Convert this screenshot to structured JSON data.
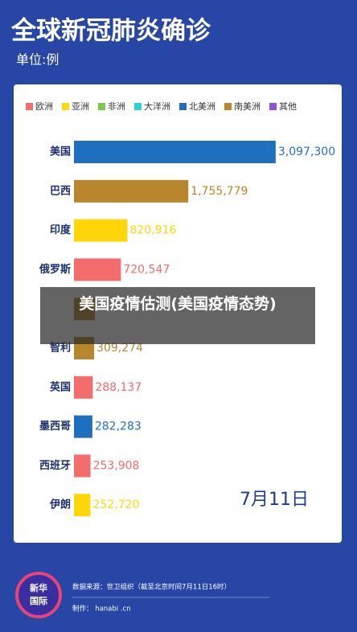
{
  "chart_data": {
    "type": "bar",
    "orientation": "horizontal",
    "title": "全球新冠肺炎确诊",
    "subtitle": "单位:例",
    "categories": [
      "美国",
      "巴西",
      "印度",
      "俄罗斯",
      null,
      "智利",
      "英国",
      "墨西哥",
      "西班牙",
      "伊朗"
    ],
    "series": [
      {
        "name": "欧洲",
        "color": "#f36d6d",
        "values": [
          null,
          null,
          null,
          720547,
          null,
          null,
          288137,
          null,
          253908,
          null
        ],
        "value_labels": [
          null,
          null,
          null,
          "720,547",
          null,
          null,
          "288,137",
          null,
          "253,908",
          null
        ]
      },
      {
        "name": "亚洲",
        "color": "#ffd60a",
        "values": [
          null,
          null,
          820916,
          null,
          null,
          null,
          null,
          null,
          null,
          252720
        ],
        "value_labels": [
          null,
          null,
          "820,916",
          null,
          null,
          null,
          null,
          null,
          null,
          "252,720"
        ]
      },
      {
        "name": "非洲",
        "color": "#7cc94a",
        "values": [
          null,
          null,
          null,
          null,
          null,
          null,
          null,
          null,
          null,
          null
        ],
        "value_labels": [
          null,
          null,
          null,
          null,
          null,
          null,
          null,
          null,
          null,
          null
        ]
      },
      {
        "name": "大洋洲",
        "color": "#2bd2d2",
        "values": [
          null,
          null,
          null,
          null,
          null,
          null,
          null,
          null,
          null,
          null
        ],
        "value_labels": [
          null,
          null,
          null,
          null,
          null,
          null,
          null,
          null,
          null,
          null
        ]
      },
      {
        "name": "北美洲",
        "color": "#1f6fc0",
        "values": [
          3097300,
          null,
          null,
          null,
          null,
          null,
          null,
          282283,
          null,
          null
        ],
        "value_labels": [
          "3,097,300",
          null,
          null,
          null,
          null,
          null,
          null,
          "282,283",
          null,
          null
        ]
      },
      {
        "name": "南美洲",
        "color": "#b8862d",
        "values": [
          null,
          1755779,
          null,
          null,
          320000,
          309274,
          null,
          null,
          null,
          null
        ],
        "value_labels": [
          null,
          "1,755,779",
          null,
          null,
          null,
          "309,274",
          null,
          null,
          null,
          null
        ]
      },
      {
        "name": "其他",
        "color": "#8e52d6",
        "values": [
          null,
          null,
          null,
          null,
          null,
          null,
          null,
          null,
          null,
          null
        ],
        "value_labels": [
          null,
          null,
          null,
          null,
          null,
          null,
          null,
          null,
          null,
          null
        ]
      }
    ],
    "xlim": [
      0,
      4000000
    ],
    "date_label": "7月11日",
    "overlay_text": "美国疫情估测(美国疫情态势)",
    "logo": [
      "新华",
      "国际"
    ],
    "source": "数据来源：世卫组织（截至北京时间7月11日16时）",
    "credit": "制作： hanabi .cn"
  }
}
